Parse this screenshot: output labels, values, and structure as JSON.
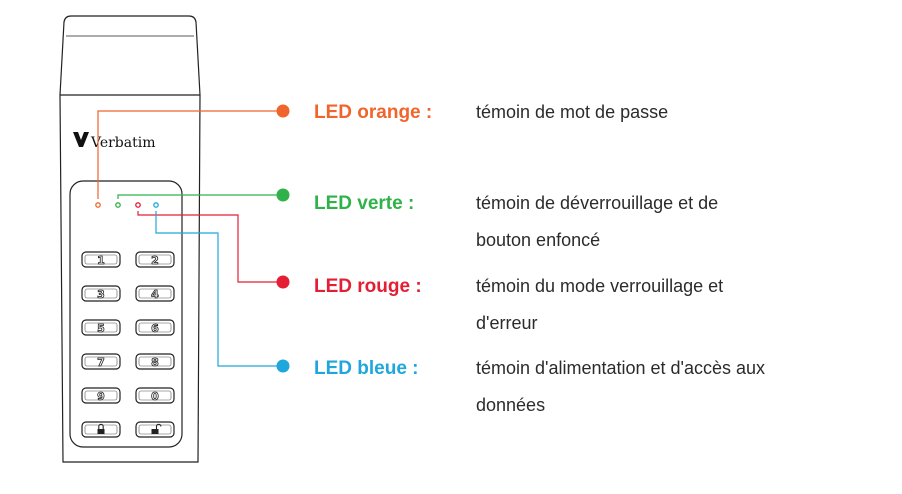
{
  "device": {
    "brand": "Verbatim",
    "keys": [
      "1",
      "2",
      "3",
      "4",
      "5",
      "6",
      "7",
      "8",
      "9",
      "0",
      "lock-icon",
      "unlock-icon"
    ]
  },
  "leds": [
    {
      "id": "orange",
      "title": "LED orange :",
      "description": [
        "témoin de mot de passe"
      ],
      "color": "#f0652c"
    },
    {
      "id": "green",
      "title": "LED verte :",
      "description": [
        "témoin de déverrouillage et de",
        "bouton enfoncé"
      ],
      "color": "#2fb24a"
    },
    {
      "id": "red",
      "title": "LED rouge :",
      "description": [
        "témoin du mode verrouillage et",
        "d'erreur"
      ],
      "color": "#e31e35"
    },
    {
      "id": "blue",
      "title": "LED bleue :",
      "description": [
        "témoin d'alimentation et d'accès aux",
        "données"
      ],
      "color": "#1ea7dd"
    }
  ]
}
